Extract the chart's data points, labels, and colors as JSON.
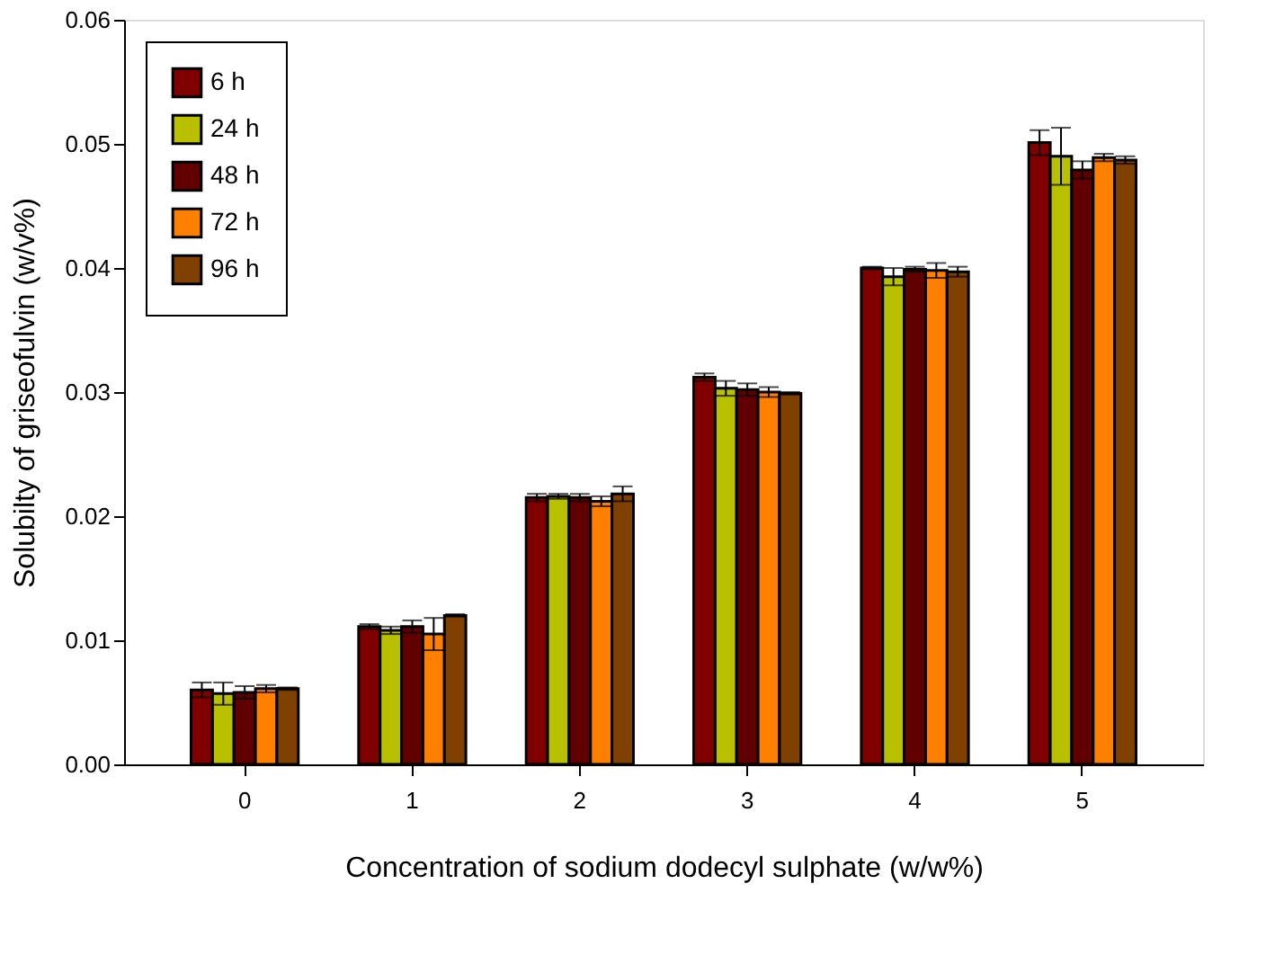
{
  "chart_data": {
    "type": "bar",
    "xlabel": "Concentration of sodium dodecyl sulphate (w/w%)",
    "ylabel": "Solubilty of griseofulvin (w/v%)",
    "categories": [
      "0",
      "1",
      "2",
      "3",
      "4",
      "5"
    ],
    "series": [
      {
        "name": "6 h",
        "color": "#800000",
        "values": [
          0.006,
          0.0111,
          0.0215,
          0.0312,
          0.04,
          0.0501
        ],
        "errors": [
          0.0006,
          0.0002,
          0.0003,
          0.0003,
          0.0001,
          0.001
        ]
      },
      {
        "name": "24 h",
        "color": "#b8c000",
        "values": [
          0.0057,
          0.0108,
          0.0216,
          0.0303,
          0.0393,
          0.049
        ],
        "errors": [
          0.0009,
          0.0003,
          0.0002,
          0.0006,
          0.0007,
          0.0023
        ]
      },
      {
        "name": "48 h",
        "color": "#600000",
        "values": [
          0.0058,
          0.0111,
          0.0215,
          0.0302,
          0.0399,
          0.0479
        ],
        "errors": [
          0.0005,
          0.0005,
          0.0003,
          0.0005,
          0.0002,
          0.0007
        ]
      },
      {
        "name": "72 h",
        "color": "#ff8000",
        "values": [
          0.0061,
          0.0105,
          0.0212,
          0.03,
          0.0398,
          0.0489
        ],
        "errors": [
          0.0003,
          0.0013,
          0.0004,
          0.0004,
          0.0006,
          0.0003
        ]
      },
      {
        "name": "96 h",
        "color": "#804000",
        "values": [
          0.0061,
          0.012,
          0.0218,
          0.0299,
          0.0397,
          0.0487
        ],
        "errors": [
          0.0001,
          0.0001,
          0.0006,
          0.0001,
          0.0004,
          0.0003
        ]
      }
    ],
    "ylim": [
      0,
      0.06
    ],
    "yticks": [
      {
        "value": 0,
        "label": "0.00"
      },
      {
        "value": 0.01,
        "label": "0.01"
      },
      {
        "value": 0.02,
        "label": "0.02"
      },
      {
        "value": 0.03,
        "label": "0.03"
      },
      {
        "value": 0.04,
        "label": "0.04"
      },
      {
        "value": 0.05,
        "label": "0.05"
      },
      {
        "value": 0.06,
        "label": "0.06"
      }
    ],
    "grid": false,
    "legend": "top left"
  }
}
